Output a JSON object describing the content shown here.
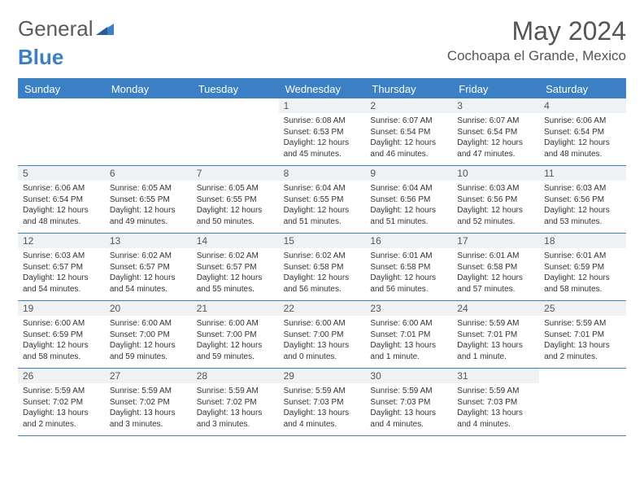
{
  "brand": {
    "part1": "General",
    "part2": "Blue"
  },
  "title": "May 2024",
  "location": "Cochoapa el Grande, Mexico",
  "day_names": [
    "Sunday",
    "Monday",
    "Tuesday",
    "Wednesday",
    "Thursday",
    "Friday",
    "Saturday"
  ],
  "colors": {
    "accent": "#3b7fc4",
    "header_text": "#ffffff",
    "daynum_bg": "#eff2f5",
    "text": "#333333",
    "title_text": "#555555"
  },
  "weeks": [
    [
      {
        "empty": true
      },
      {
        "empty": true
      },
      {
        "empty": true
      },
      {
        "day": "1",
        "sunrise": "Sunrise: 6:08 AM",
        "sunset": "Sunset: 6:53 PM",
        "daylight1": "Daylight: 12 hours",
        "daylight2": "and 45 minutes."
      },
      {
        "day": "2",
        "sunrise": "Sunrise: 6:07 AM",
        "sunset": "Sunset: 6:54 PM",
        "daylight1": "Daylight: 12 hours",
        "daylight2": "and 46 minutes."
      },
      {
        "day": "3",
        "sunrise": "Sunrise: 6:07 AM",
        "sunset": "Sunset: 6:54 PM",
        "daylight1": "Daylight: 12 hours",
        "daylight2": "and 47 minutes."
      },
      {
        "day": "4",
        "sunrise": "Sunrise: 6:06 AM",
        "sunset": "Sunset: 6:54 PM",
        "daylight1": "Daylight: 12 hours",
        "daylight2": "and 48 minutes."
      }
    ],
    [
      {
        "day": "5",
        "sunrise": "Sunrise: 6:06 AM",
        "sunset": "Sunset: 6:54 PM",
        "daylight1": "Daylight: 12 hours",
        "daylight2": "and 48 minutes."
      },
      {
        "day": "6",
        "sunrise": "Sunrise: 6:05 AM",
        "sunset": "Sunset: 6:55 PM",
        "daylight1": "Daylight: 12 hours",
        "daylight2": "and 49 minutes."
      },
      {
        "day": "7",
        "sunrise": "Sunrise: 6:05 AM",
        "sunset": "Sunset: 6:55 PM",
        "daylight1": "Daylight: 12 hours",
        "daylight2": "and 50 minutes."
      },
      {
        "day": "8",
        "sunrise": "Sunrise: 6:04 AM",
        "sunset": "Sunset: 6:55 PM",
        "daylight1": "Daylight: 12 hours",
        "daylight2": "and 51 minutes."
      },
      {
        "day": "9",
        "sunrise": "Sunrise: 6:04 AM",
        "sunset": "Sunset: 6:56 PM",
        "daylight1": "Daylight: 12 hours",
        "daylight2": "and 51 minutes."
      },
      {
        "day": "10",
        "sunrise": "Sunrise: 6:03 AM",
        "sunset": "Sunset: 6:56 PM",
        "daylight1": "Daylight: 12 hours",
        "daylight2": "and 52 minutes."
      },
      {
        "day": "11",
        "sunrise": "Sunrise: 6:03 AM",
        "sunset": "Sunset: 6:56 PM",
        "daylight1": "Daylight: 12 hours",
        "daylight2": "and 53 minutes."
      }
    ],
    [
      {
        "day": "12",
        "sunrise": "Sunrise: 6:03 AM",
        "sunset": "Sunset: 6:57 PM",
        "daylight1": "Daylight: 12 hours",
        "daylight2": "and 54 minutes."
      },
      {
        "day": "13",
        "sunrise": "Sunrise: 6:02 AM",
        "sunset": "Sunset: 6:57 PM",
        "daylight1": "Daylight: 12 hours",
        "daylight2": "and 54 minutes."
      },
      {
        "day": "14",
        "sunrise": "Sunrise: 6:02 AM",
        "sunset": "Sunset: 6:57 PM",
        "daylight1": "Daylight: 12 hours",
        "daylight2": "and 55 minutes."
      },
      {
        "day": "15",
        "sunrise": "Sunrise: 6:02 AM",
        "sunset": "Sunset: 6:58 PM",
        "daylight1": "Daylight: 12 hours",
        "daylight2": "and 56 minutes."
      },
      {
        "day": "16",
        "sunrise": "Sunrise: 6:01 AM",
        "sunset": "Sunset: 6:58 PM",
        "daylight1": "Daylight: 12 hours",
        "daylight2": "and 56 minutes."
      },
      {
        "day": "17",
        "sunrise": "Sunrise: 6:01 AM",
        "sunset": "Sunset: 6:58 PM",
        "daylight1": "Daylight: 12 hours",
        "daylight2": "and 57 minutes."
      },
      {
        "day": "18",
        "sunrise": "Sunrise: 6:01 AM",
        "sunset": "Sunset: 6:59 PM",
        "daylight1": "Daylight: 12 hours",
        "daylight2": "and 58 minutes."
      }
    ],
    [
      {
        "day": "19",
        "sunrise": "Sunrise: 6:00 AM",
        "sunset": "Sunset: 6:59 PM",
        "daylight1": "Daylight: 12 hours",
        "daylight2": "and 58 minutes."
      },
      {
        "day": "20",
        "sunrise": "Sunrise: 6:00 AM",
        "sunset": "Sunset: 7:00 PM",
        "daylight1": "Daylight: 12 hours",
        "daylight2": "and 59 minutes."
      },
      {
        "day": "21",
        "sunrise": "Sunrise: 6:00 AM",
        "sunset": "Sunset: 7:00 PM",
        "daylight1": "Daylight: 12 hours",
        "daylight2": "and 59 minutes."
      },
      {
        "day": "22",
        "sunrise": "Sunrise: 6:00 AM",
        "sunset": "Sunset: 7:00 PM",
        "daylight1": "Daylight: 13 hours",
        "daylight2": "and 0 minutes."
      },
      {
        "day": "23",
        "sunrise": "Sunrise: 6:00 AM",
        "sunset": "Sunset: 7:01 PM",
        "daylight1": "Daylight: 13 hours",
        "daylight2": "and 1 minute."
      },
      {
        "day": "24",
        "sunrise": "Sunrise: 5:59 AM",
        "sunset": "Sunset: 7:01 PM",
        "daylight1": "Daylight: 13 hours",
        "daylight2": "and 1 minute."
      },
      {
        "day": "25",
        "sunrise": "Sunrise: 5:59 AM",
        "sunset": "Sunset: 7:01 PM",
        "daylight1": "Daylight: 13 hours",
        "daylight2": "and 2 minutes."
      }
    ],
    [
      {
        "day": "26",
        "sunrise": "Sunrise: 5:59 AM",
        "sunset": "Sunset: 7:02 PM",
        "daylight1": "Daylight: 13 hours",
        "daylight2": "and 2 minutes."
      },
      {
        "day": "27",
        "sunrise": "Sunrise: 5:59 AM",
        "sunset": "Sunset: 7:02 PM",
        "daylight1": "Daylight: 13 hours",
        "daylight2": "and 3 minutes."
      },
      {
        "day": "28",
        "sunrise": "Sunrise: 5:59 AM",
        "sunset": "Sunset: 7:02 PM",
        "daylight1": "Daylight: 13 hours",
        "daylight2": "and 3 minutes."
      },
      {
        "day": "29",
        "sunrise": "Sunrise: 5:59 AM",
        "sunset": "Sunset: 7:03 PM",
        "daylight1": "Daylight: 13 hours",
        "daylight2": "and 4 minutes."
      },
      {
        "day": "30",
        "sunrise": "Sunrise: 5:59 AM",
        "sunset": "Sunset: 7:03 PM",
        "daylight1": "Daylight: 13 hours",
        "daylight2": "and 4 minutes."
      },
      {
        "day": "31",
        "sunrise": "Sunrise: 5:59 AM",
        "sunset": "Sunset: 7:03 PM",
        "daylight1": "Daylight: 13 hours",
        "daylight2": "and 4 minutes."
      },
      {
        "empty": true
      }
    ]
  ]
}
